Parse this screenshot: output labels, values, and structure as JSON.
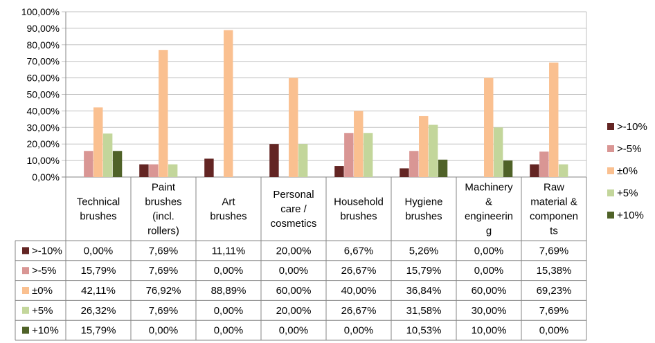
{
  "chart_data": {
    "type": "bar",
    "categories": [
      [
        "Technical",
        "brushes"
      ],
      [
        "Paint",
        "brushes",
        "(incl.",
        "rollers)"
      ],
      [
        "Art",
        "brushes"
      ],
      [
        "Personal",
        "care /",
        "cosmetics"
      ],
      [
        "Household",
        "brushes"
      ],
      [
        "Hygiene",
        "brushes"
      ],
      [
        "Machinery",
        "&",
        "engineerin",
        "g"
      ],
      [
        "Raw",
        "material &",
        "componen",
        "ts"
      ]
    ],
    "ylim": [
      0,
      100
    ],
    "yticks": [
      "0,00%",
      "10,00%",
      "20,00%",
      "30,00%",
      "40,00%",
      "50,00%",
      "60,00%",
      "70,00%",
      "80,00%",
      "90,00%",
      "100,00%"
    ],
    "grid": true,
    "legend_position": "right",
    "series": [
      {
        "name": ">-10%",
        "color": "#632523",
        "values": [
          0.0,
          7.69,
          11.11,
          20.0,
          6.67,
          5.26,
          0.0,
          7.69
        ],
        "labels": [
          "0,00%",
          "7,69%",
          "11,11%",
          "20,00%",
          "6,67%",
          "5,26%",
          "0,00%",
          "7,69%"
        ]
      },
      {
        "name": ">-5%",
        "color": "#d99694",
        "values": [
          15.79,
          7.69,
          0.0,
          0.0,
          26.67,
          15.79,
          0.0,
          15.38
        ],
        "labels": [
          "15,79%",
          "7,69%",
          "0,00%",
          "0,00%",
          "26,67%",
          "15,79%",
          "0,00%",
          "15,38%"
        ]
      },
      {
        "name": "±0%",
        "color": "#fac090",
        "values": [
          42.11,
          76.92,
          88.89,
          60.0,
          40.0,
          36.84,
          60.0,
          69.23
        ],
        "labels": [
          "42,11%",
          "76,92%",
          "88,89%",
          "60,00%",
          "40,00%",
          "36,84%",
          "60,00%",
          "69,23%"
        ]
      },
      {
        "name": "+5%",
        "color": "#c3d69b",
        "values": [
          26.32,
          7.69,
          0.0,
          20.0,
          26.67,
          31.58,
          30.0,
          7.69
        ],
        "labels": [
          "26,32%",
          "7,69%",
          "0,00%",
          "20,00%",
          "26,67%",
          "31,58%",
          "30,00%",
          "7,69%"
        ]
      },
      {
        "name": "+10%",
        "color": "#4f6228",
        "values": [
          15.79,
          0.0,
          0.0,
          0.0,
          0.0,
          10.53,
          10.0,
          0.0
        ],
        "labels": [
          "15,79%",
          "0,00%",
          "0,00%",
          "0,00%",
          "0,00%",
          "10,53%",
          "10,00%",
          "0,00%"
        ]
      }
    ]
  }
}
